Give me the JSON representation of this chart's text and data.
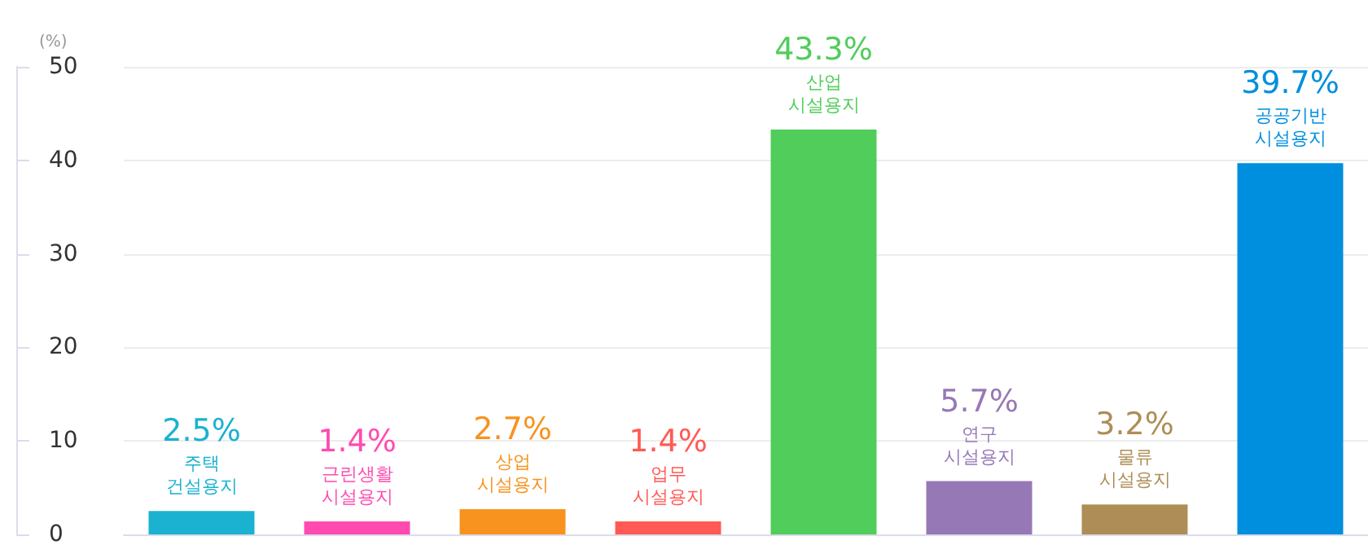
{
  "chart_data": {
    "type": "bar",
    "ylabel": "(%)",
    "categories": [
      "주택 건설용지",
      "근린생활 시설용지",
      "상업 시설용지",
      "업무 시설용지",
      "산업 시설용지",
      "연구 시설용지",
      "물류 시설용지",
      "공공기반 시설용지"
    ],
    "values": [
      2.5,
      1.4,
      2.7,
      1.4,
      43.3,
      5.7,
      3.2,
      39.7
    ],
    "value_labels": [
      "2.5%",
      "1.4%",
      "2.7%",
      "1.4%",
      "43.3%",
      "5.7%",
      "3.2%",
      "39.7%"
    ],
    "colors": [
      "#1ab2d0",
      "#ff4bb0",
      "#f7931e",
      "#ff5a55",
      "#50cd5a",
      "#9778b6",
      "#ae8d57",
      "#008fde"
    ],
    "ylim": [
      0,
      50
    ],
    "yticks": [
      0,
      10,
      20,
      30,
      40,
      50
    ],
    "grid": "y"
  }
}
